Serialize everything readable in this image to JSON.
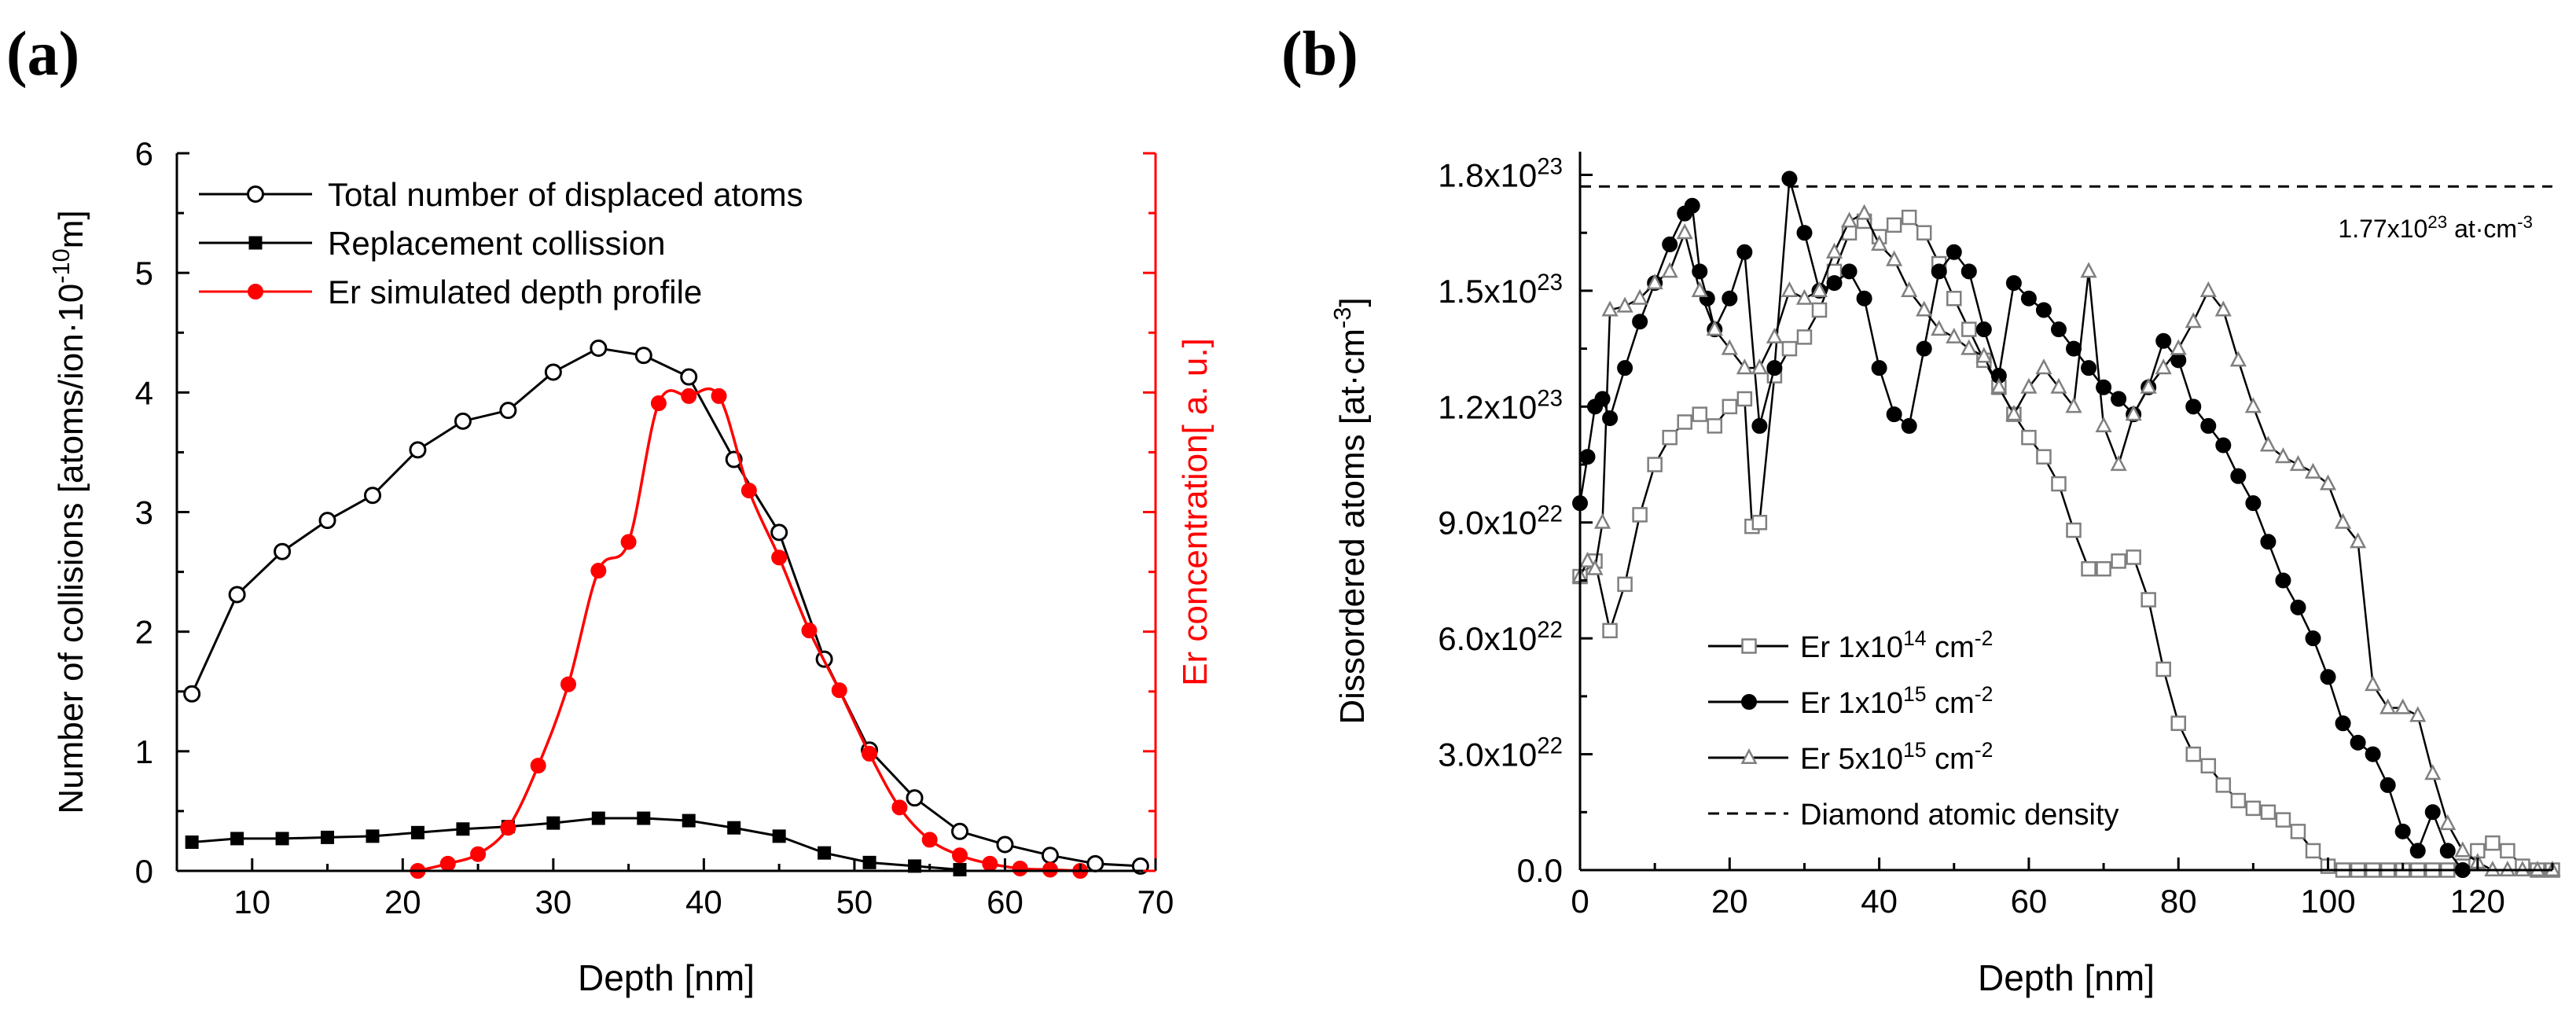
{
  "chart_data": [
    {
      "panel_label": "(a)",
      "type": "line",
      "xlabel": "Depth [nm]",
      "ylabel_left": "Number of collisions [atoms/ion·10",
      "ylabel_left_sup": "-10",
      "ylabel_left_end": "m]",
      "ylabel_right": "Er concentration[ a. u.]",
      "xlim": [
        5,
        70
      ],
      "ylim_left": [
        0,
        6
      ],
      "ylim_right": [
        0,
        6
      ],
      "xticks": [
        10,
        20,
        30,
        40,
        50,
        60,
        70
      ],
      "yticks_left": [
        0,
        1,
        2,
        3,
        4,
        5,
        6
      ],
      "right_axis_color": "#ff0000",
      "legend_position": "top-left",
      "series": [
        {
          "name": "Total number of displaced atoms",
          "marker": "open-circle",
          "color": "#000000",
          "x": [
            6,
            9,
            12,
            15,
            18,
            21,
            24,
            27,
            30,
            33,
            36,
            39,
            42,
            45,
            48,
            51,
            54,
            57,
            60,
            63,
            66,
            69
          ],
          "y": [
            1.48,
            2.31,
            2.67,
            2.93,
            3.14,
            3.52,
            3.76,
            3.85,
            4.17,
            4.37,
            4.31,
            4.13,
            3.44,
            2.83,
            1.77,
            1.01,
            0.61,
            0.33,
            0.22,
            0.13,
            0.06,
            0.04
          ]
        },
        {
          "name": "Replacement collission",
          "marker": "filled-square",
          "color": "#000000",
          "x": [
            6,
            9,
            12,
            15,
            18,
            21,
            24,
            27,
            30,
            33,
            36,
            39,
            42,
            45,
            48,
            51,
            54,
            57
          ],
          "y": [
            0.24,
            0.27,
            0.27,
            0.28,
            0.29,
            0.32,
            0.35,
            0.37,
            0.4,
            0.44,
            0.44,
            0.42,
            0.36,
            0.29,
            0.15,
            0.07,
            0.04,
            0.01
          ]
        },
        {
          "name": "Er simulated depth profile",
          "marker": "filled-circle",
          "color": "#ff0000",
          "axis": "right",
          "x": [
            21,
            23,
            25,
            27,
            29,
            31,
            33,
            35,
            37,
            39,
            41,
            43,
            45,
            47,
            49,
            51,
            53,
            55,
            57,
            59,
            61,
            63,
            65
          ],
          "y": [
            0.0,
            0.06,
            0.14,
            0.36,
            0.88,
            1.56,
            2.51,
            2.75,
            3.91,
            3.97,
            3.97,
            3.18,
            2.62,
            2.01,
            1.51,
            0.98,
            0.53,
            0.26,
            0.13,
            0.06,
            0.02,
            0.01,
            0.0
          ]
        }
      ]
    },
    {
      "panel_label": "(b)",
      "type": "line",
      "xlabel": "Depth [nm]",
      "ylabel": "Dissordered atoms [at·cm",
      "ylabel_sup": "-3",
      "ylabel_end": "]",
      "xlim": [
        0,
        130
      ],
      "ylim": [
        0,
        1.86e+23
      ],
      "xticks": [
        0,
        20,
        40,
        60,
        80,
        100,
        120
      ],
      "yticks": [
        0,
        3e+22,
        6e+22,
        9e+22,
        1.2e+23,
        1.5e+23,
        1.8e+23
      ],
      "ytick_labels": [
        {
          "base": "0.0",
          "exp": ""
        },
        {
          "base": "3.0x10",
          "exp": "22"
        },
        {
          "base": "6.0x10",
          "exp": "22"
        },
        {
          "base": "9.0x10",
          "exp": "22"
        },
        {
          "base": "1.2x10",
          "exp": "23"
        },
        {
          "base": "1.5x10",
          "exp": "23"
        },
        {
          "base": "1.8x10",
          "exp": "23"
        }
      ],
      "reference_line": {
        "name": "Diamond atomic density",
        "value": 1.77e+23,
        "label_base": "1.77x10",
        "label_exp": "23",
        "label_unit": " at·cm",
        "label_unit_exp": "-3"
      },
      "legend_position": "bottom-left",
      "series": [
        {
          "name_base": "Er 1x10",
          "name_exp": "14",
          "name_unit": " cm",
          "name_unit_exp": "-2",
          "marker": "open-square",
          "color": "#7f7f7f",
          "x": [
            0,
            2,
            4,
            6,
            8,
            10,
            12,
            14,
            16,
            18,
            20,
            22,
            23,
            24,
            26,
            28,
            30,
            32,
            34,
            36,
            38,
            40,
            42,
            44,
            46,
            48,
            50,
            52,
            54,
            56,
            58,
            60,
            62,
            64,
            66,
            68,
            70,
            72,
            74,
            76,
            78,
            80,
            82,
            84,
            86,
            88,
            90,
            92,
            94,
            96,
            98,
            100,
            102,
            104,
            106,
            108,
            110,
            112,
            114,
            116,
            118,
            120,
            122,
            124,
            126,
            128,
            130
          ],
          "y": [
            7.6e+22,
            8e+22,
            6.2e+22,
            7.4e+22,
            9.2e+22,
            1.05e+23,
            1.12e+23,
            1.16e+23,
            1.18e+23,
            1.15e+23,
            1.2e+23,
            1.22e+23,
            8.9e+22,
            9e+22,
            1.28e+23,
            1.35e+23,
            1.38e+23,
            1.45e+23,
            1.55e+23,
            1.65e+23,
            1.68e+23,
            1.64e+23,
            1.67e+23,
            1.69e+23,
            1.65e+23,
            1.57e+23,
            1.48e+23,
            1.4e+23,
            1.32e+23,
            1.25e+23,
            1.18e+23,
            1.12e+23,
            1.07e+23,
            1e+23,
            8.8e+22,
            7.8e+22,
            7.8e+22,
            8e+22,
            8.1e+22,
            7e+22,
            5.2e+22,
            3.8e+22,
            3e+22,
            2.7e+22,
            2.2e+22,
            1.8e+22,
            1.6e+22,
            1.5e+22,
            1.3e+22,
            1e+22,
            5e+21,
            1e+21,
            0,
            0,
            0,
            0,
            0,
            0,
            0,
            0,
            1e+21,
            5e+21,
            7e+21,
            5e+21,
            1e+21,
            0,
            0
          ]
        },
        {
          "name_base": "Er 1x10",
          "name_exp": "15",
          "name_unit": " cm",
          "name_unit_exp": "-2",
          "marker": "filled-circle",
          "color": "#000000",
          "x": [
            0,
            1,
            2,
            3,
            4,
            6,
            8,
            10,
            12,
            14,
            15,
            16,
            17,
            18,
            20,
            22,
            24,
            26,
            28,
            30,
            32,
            34,
            36,
            38,
            40,
            42,
            44,
            46,
            48,
            50,
            52,
            54,
            56,
            58,
            60,
            62,
            64,
            66,
            68,
            70,
            72,
            74,
            76,
            78,
            80,
            82,
            84,
            86,
            88,
            90,
            92,
            94,
            96,
            98,
            100,
            102,
            104,
            106,
            108,
            110,
            112,
            114,
            116,
            118
          ],
          "y": [
            9.5e+22,
            1.07e+23,
            1.2e+23,
            1.22e+23,
            1.17e+23,
            1.3e+23,
            1.42e+23,
            1.52e+23,
            1.62e+23,
            1.7e+23,
            1.72e+23,
            1.55e+23,
            1.48e+23,
            1.4e+23,
            1.48e+23,
            1.6e+23,
            1.15e+23,
            1.3e+23,
            1.79e+23,
            1.65e+23,
            1.5e+23,
            1.52e+23,
            1.55e+23,
            1.48e+23,
            1.3e+23,
            1.18e+23,
            1.15e+23,
            1.35e+23,
            1.55e+23,
            1.6e+23,
            1.55e+23,
            1.4e+23,
            1.28e+23,
            1.52e+23,
            1.48e+23,
            1.45e+23,
            1.4e+23,
            1.35e+23,
            1.3e+23,
            1.25e+23,
            1.22e+23,
            1.18e+23,
            1.25e+23,
            1.37e+23,
            1.32e+23,
            1.2e+23,
            1.15e+23,
            1.1e+23,
            1.02e+23,
            9.5e+22,
            8.5e+22,
            7.5e+22,
            6.8e+22,
            6e+22,
            5e+22,
            3.8e+22,
            3.3e+22,
            3e+22,
            2.2e+22,
            1e+22,
            5e+21,
            1.5e+22,
            5e+21,
            0
          ]
        },
        {
          "name_base": "Er 5x10",
          "name_exp": "15",
          "name_unit": " cm",
          "name_unit_exp": "-2",
          "marker": "open-triangle",
          "color": "#7f7f7f",
          "x": [
            0,
            1,
            2,
            3,
            4,
            6,
            8,
            10,
            12,
            14,
            16,
            18,
            20,
            22,
            24,
            26,
            28,
            30,
            32,
            34,
            36,
            38,
            40,
            42,
            44,
            46,
            48,
            50,
            52,
            54,
            56,
            58,
            60,
            62,
            64,
            66,
            68,
            70,
            72,
            74,
            76,
            78,
            80,
            82,
            84,
            86,
            88,
            90,
            92,
            94,
            96,
            98,
            100,
            102,
            104,
            106,
            108,
            110,
            112,
            114,
            116,
            118,
            120,
            122,
            124,
            126,
            128,
            130
          ],
          "y": [
            7.6e+22,
            8e+22,
            7.8e+22,
            9e+22,
            1.45e+23,
            1.46e+23,
            1.48e+23,
            1.52e+23,
            1.55e+23,
            1.65e+23,
            1.5e+23,
            1.4e+23,
            1.35e+23,
            1.3e+23,
            1.3e+23,
            1.38e+23,
            1.5e+23,
            1.48e+23,
            1.5e+23,
            1.6e+23,
            1.68e+23,
            1.7e+23,
            1.62e+23,
            1.58e+23,
            1.5e+23,
            1.45e+23,
            1.4e+23,
            1.38e+23,
            1.35e+23,
            1.33e+23,
            1.25e+23,
            1.18e+23,
            1.25e+23,
            1.3e+23,
            1.25e+23,
            1.2e+23,
            1.55e+23,
            1.15e+23,
            1.05e+23,
            1.18e+23,
            1.25e+23,
            1.3e+23,
            1.35e+23,
            1.42e+23,
            1.5e+23,
            1.45e+23,
            1.32e+23,
            1.2e+23,
            1.1e+23,
            1.07e+23,
            1.05e+23,
            1.03e+23,
            1e+23,
            9e+22,
            8.5e+22,
            4.8e+22,
            4.2e+22,
            4.2e+22,
            4e+22,
            2.5e+22,
            1.2e+22,
            5e+21,
            2e+21,
            0,
            0,
            0,
            0,
            0
          ]
        }
      ]
    }
  ]
}
